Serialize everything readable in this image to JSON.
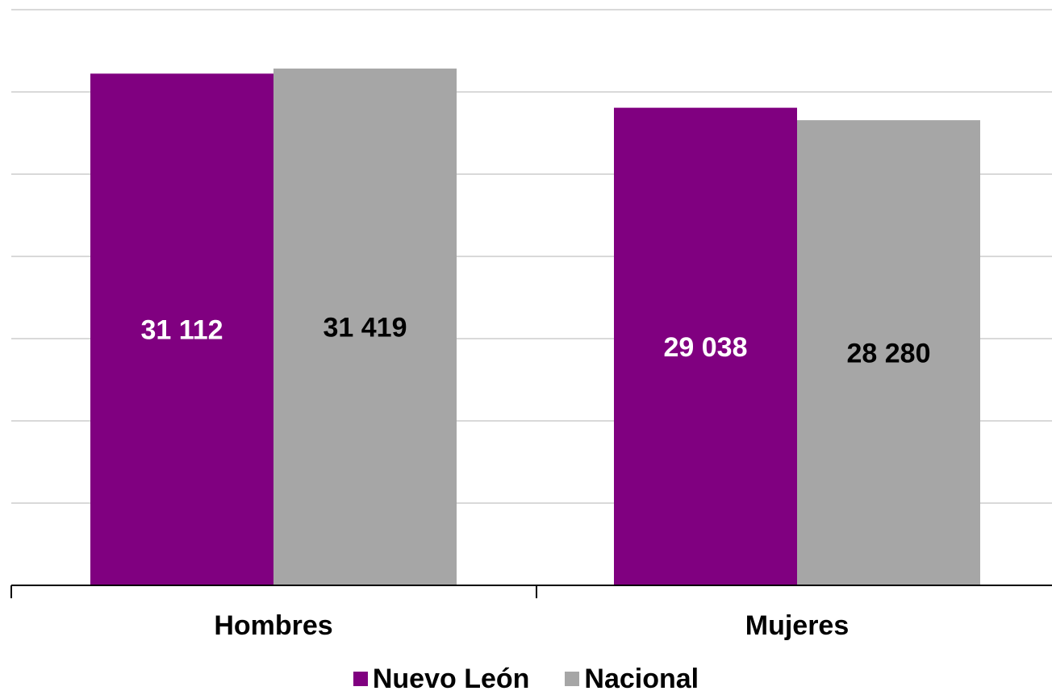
{
  "chart_data": {
    "type": "bar",
    "categories": [
      "Hombres",
      "Mujeres"
    ],
    "series": [
      {
        "name": "Nuevo León",
        "values": [
          31112,
          29038
        ],
        "labels": [
          "31 112",
          "29 038"
        ],
        "color": "#800080",
        "label_color": "#ffffff"
      },
      {
        "name": "Nacional",
        "values": [
          31419,
          28280
        ],
        "labels": [
          "31 419",
          "28 280"
        ],
        "color": "#a6a6a6",
        "label_color": "#000000"
      }
    ],
    "ylim": [
      0,
      35000
    ],
    "y_gridline_step": 5000,
    "grid": true,
    "legend_position": "bottom",
    "title": "",
    "xlabel": "",
    "ylabel": ""
  }
}
